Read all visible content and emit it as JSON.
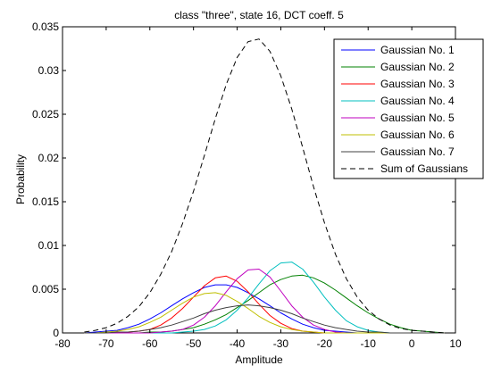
{
  "chart_data": {
    "type": "line",
    "title": "class \"three\", state 16, DCT coeff. 5",
    "xlabel": "Amplitude",
    "ylabel": "Probability",
    "xlim": [
      -80,
      10
    ],
    "ylim": [
      0,
      0.035
    ],
    "x_ticks": [
      -80,
      -70,
      -60,
      -50,
      -40,
      -30,
      -20,
      -10,
      0,
      10
    ],
    "x_tick_labels": [
      "-80",
      "-70",
      "-60",
      "-50",
      "-40",
      "-30",
      "-20",
      "-10",
      "0",
      "10"
    ],
    "y_ticks": [
      0,
      0.005,
      0.01,
      0.015,
      0.02,
      0.025,
      0.03,
      0.035
    ],
    "y_tick_labels": [
      "0",
      "0.005",
      "0.01",
      "0.015",
      "0.02",
      "0.025",
      "0.03",
      "0.035"
    ],
    "grid": false,
    "legend_position": "top-right",
    "x": [
      -75,
      -72.5,
      -70,
      -67.5,
      -65,
      -62.5,
      -60,
      -57.5,
      -55,
      -52.5,
      -50,
      -47.5,
      -45,
      -42.5,
      -40,
      -37.5,
      -35,
      -32.5,
      -30,
      -27.5,
      -25,
      -22.5,
      -20,
      -17.5,
      -15,
      -12.5,
      -10,
      -7.5,
      -5,
      -2.5,
      0,
      2.5,
      5,
      7.5
    ],
    "series": [
      {
        "name": "Gaussian No. 1",
        "color": "#0000ff",
        "style": "solid",
        "values": [
          0.0,
          0.0001,
          0.0002,
          0.0003,
          0.0006,
          0.001,
          0.0016,
          0.0023,
          0.0031,
          0.0039,
          0.0046,
          0.0052,
          0.0055,
          0.0055,
          0.0052,
          0.0046,
          0.0039,
          0.0031,
          0.0023,
          0.0016,
          0.001,
          0.0006,
          0.0003,
          0.0002,
          0.0001,
          0.0,
          0.0,
          0.0,
          0.0,
          0.0,
          0.0,
          0.0,
          0.0,
          0.0
        ]
      },
      {
        "name": "Gaussian No. 2",
        "color": "#008000",
        "style": "solid",
        "values": [
          0.0,
          0.0,
          0.0,
          0.0,
          0.0,
          0.0,
          0.0001,
          0.0001,
          0.0002,
          0.0004,
          0.0006,
          0.001,
          0.0015,
          0.0021,
          0.0029,
          0.0037,
          0.0046,
          0.0055,
          0.0061,
          0.0065,
          0.0066,
          0.0063,
          0.0057,
          0.0049,
          0.004,
          0.0031,
          0.0023,
          0.0016,
          0.001,
          0.0006,
          0.0003,
          0.0002,
          0.0001,
          0.0
        ]
      },
      {
        "name": "Gaussian No. 3",
        "color": "#ff0000",
        "style": "solid",
        "values": [
          0.0,
          0.0,
          0.0,
          0.0,
          0.0001,
          0.0002,
          0.0004,
          0.0009,
          0.0017,
          0.0028,
          0.0041,
          0.0054,
          0.0063,
          0.0065,
          0.0059,
          0.0047,
          0.0033,
          0.002,
          0.0011,
          0.0005,
          0.0002,
          0.0001,
          0.0,
          0.0,
          0.0,
          0.0,
          0.0,
          0.0,
          0.0,
          0.0,
          0.0,
          0.0,
          0.0,
          0.0
        ]
      },
      {
        "name": "Gaussian No. 4",
        "color": "#00bfbf",
        "style": "solid",
        "values": [
          0.0,
          0.0,
          0.0,
          0.0,
          0.0,
          0.0,
          0.0,
          0.0,
          0.0,
          0.0001,
          0.0002,
          0.0004,
          0.0008,
          0.0015,
          0.0026,
          0.004,
          0.0056,
          0.0071,
          0.008,
          0.0081,
          0.0073,
          0.0058,
          0.0041,
          0.0026,
          0.0014,
          0.0007,
          0.0003,
          0.0001,
          0.0,
          0.0,
          0.0,
          0.0,
          0.0,
          0.0
        ]
      },
      {
        "name": "Gaussian No. 5",
        "color": "#bf00bf",
        "style": "solid",
        "values": [
          0.0,
          0.0,
          0.0,
          0.0,
          0.0,
          0.0,
          0.0,
          0.0001,
          0.0002,
          0.0004,
          0.0009,
          0.0018,
          0.0031,
          0.0047,
          0.0062,
          0.0072,
          0.0073,
          0.0064,
          0.0048,
          0.0031,
          0.0018,
          0.0009,
          0.0004,
          0.0001,
          0.0,
          0.0,
          0.0,
          0.0,
          0.0,
          0.0,
          0.0,
          0.0,
          0.0,
          0.0
        ]
      },
      {
        "name": "Gaussian No. 6",
        "color": "#bfbf00",
        "style": "solid",
        "values": [
          0.0,
          0.0,
          0.0001,
          0.0002,
          0.0004,
          0.0007,
          0.0012,
          0.0018,
          0.0026,
          0.0034,
          0.0041,
          0.0045,
          0.0046,
          0.0043,
          0.0036,
          0.0028,
          0.0019,
          0.0012,
          0.0007,
          0.0004,
          0.0002,
          0.0001,
          0.0,
          0.0,
          0.0,
          0.0,
          0.0,
          0.0,
          0.0,
          0.0,
          0.0,
          0.0,
          0.0,
          0.0
        ]
      },
      {
        "name": "Gaussian No. 7",
        "color": "#404040",
        "style": "solid",
        "values": [
          0.0,
          0.0,
          0.0,
          0.0001,
          0.0001,
          0.0002,
          0.0004,
          0.0006,
          0.0009,
          0.0013,
          0.0017,
          0.0022,
          0.0026,
          0.0029,
          0.0031,
          0.0032,
          0.0031,
          0.0029,
          0.0026,
          0.0022,
          0.0017,
          0.0013,
          0.0009,
          0.0006,
          0.0004,
          0.0002,
          0.0001,
          0.0001,
          0.0,
          0.0,
          0.0,
          0.0,
          0.0,
          0.0
        ]
      },
      {
        "name": "Sum of Gaussians",
        "color": "#000000",
        "style": "dashed",
        "values": [
          0.0001,
          0.0003,
          0.0006,
          0.0011,
          0.0019,
          0.003,
          0.0046,
          0.0067,
          0.0093,
          0.0125,
          0.0162,
          0.0203,
          0.0245,
          0.0284,
          0.0315,
          0.0333,
          0.0336,
          0.0322,
          0.0294,
          0.0256,
          0.0212,
          0.0167,
          0.0126,
          0.009,
          0.0062,
          0.0041,
          0.0026,
          0.0016,
          0.0009,
          0.0005,
          0.0003,
          0.0002,
          0.0001,
          0.0
        ]
      }
    ]
  }
}
